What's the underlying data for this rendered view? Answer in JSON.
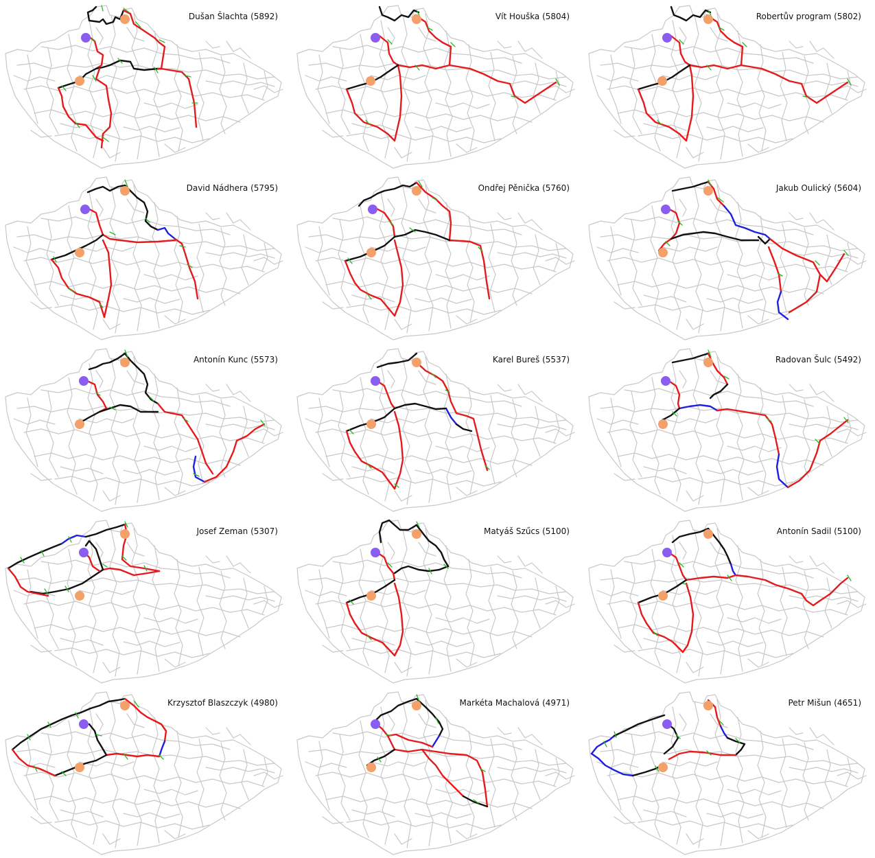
{
  "colors": {
    "network": "#c8c8c8",
    "route_red": "#e41a1c",
    "route_black": "#111111",
    "route_blue": "#1f1fe0",
    "marker_orange": "#f4a06a",
    "marker_purple": "#8a5cf0",
    "stop_tick": "#22bb22"
  },
  "panels": [
    {
      "label": "Dušan Šlachta (5892)",
      "route": "r1"
    },
    {
      "label": "Vít Houška (5804)",
      "route": "r2"
    },
    {
      "label": "Robertův program (5802)",
      "route": "r2"
    },
    {
      "label": "David Nádhera (5795)",
      "route": "r4"
    },
    {
      "label": "Ondřej Pěnička (5760)",
      "route": "r5"
    },
    {
      "label": "Jakub Oulický (5604)",
      "route": "r6"
    },
    {
      "label": "Antonín Kunc (5573)",
      "route": "r7"
    },
    {
      "label": "Karel Bureš (5537)",
      "route": "r8"
    },
    {
      "label": "Radovan Šulc (5492)",
      "route": "r9"
    },
    {
      "label": "Josef Zeman (5307)",
      "route": "r10"
    },
    {
      "label": "Matyáš Szűcs (5100)",
      "route": "r11"
    },
    {
      "label": "Antonín Sadil (5100)",
      "route": "r12"
    },
    {
      "label": "Krzysztof Blaszczyk (4980)",
      "route": "r13"
    },
    {
      "label": "Markéta Machalová (4971)",
      "route": "r14"
    },
    {
      "label": "Petr Mišun (4651)",
      "route": "r15"
    }
  ]
}
